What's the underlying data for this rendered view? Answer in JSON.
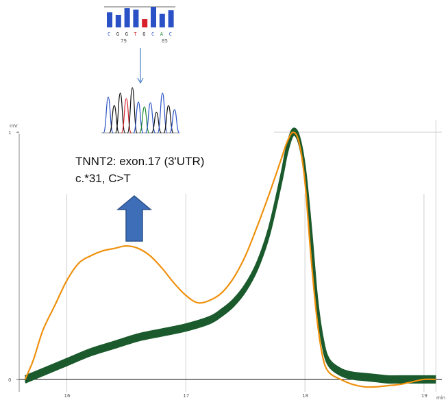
{
  "chart_data": {
    "type": "line",
    "xlabel": "min",
    "ylabel": "mV",
    "xlim": [
      15.6,
      19.15
    ],
    "ylim": [
      -0.05,
      1.05
    ],
    "x_ticks": [
      "16",
      "17",
      "18",
      "19"
    ],
    "y_ticks": [
      "0",
      "1"
    ],
    "grid": true,
    "colors": {
      "mutant": "#f0900c",
      "wildtype": "#1a5a2c",
      "arrow": "#3f6eb8",
      "grid": "#cfcfcf",
      "axis": "#222222"
    },
    "series": [
      {
        "key": "mutant",
        "x": [
          15.65,
          15.72,
          15.8,
          15.9,
          16.0,
          16.1,
          16.2,
          16.3,
          16.4,
          16.5,
          16.6,
          16.7,
          16.8,
          16.9,
          17.0,
          17.1,
          17.2,
          17.3,
          17.4,
          17.5,
          17.6,
          17.7,
          17.8,
          17.85,
          17.9,
          17.95,
          18.0,
          18.05,
          18.1,
          18.15,
          18.2,
          18.3,
          18.4,
          18.5,
          18.6,
          18.7,
          18.8,
          18.9,
          19.0,
          19.1
        ],
        "y": [
          0.0,
          0.08,
          0.2,
          0.3,
          0.4,
          0.47,
          0.5,
          0.52,
          0.53,
          0.54,
          0.53,
          0.5,
          0.45,
          0.39,
          0.34,
          0.31,
          0.32,
          0.35,
          0.41,
          0.5,
          0.62,
          0.75,
          0.89,
          0.96,
          1.0,
          0.96,
          0.8,
          0.5,
          0.25,
          0.09,
          0.03,
          0.0,
          -0.02,
          -0.03,
          -0.03,
          -0.025,
          -0.02,
          -0.01,
          0.0,
          0.0
        ]
      },
      {
        "key": "wildtype",
        "x": [
          15.65,
          15.8,
          16.0,
          16.2,
          16.4,
          16.6,
          16.8,
          17.0,
          17.2,
          17.3,
          17.4,
          17.5,
          17.6,
          17.7,
          17.8,
          17.85,
          17.9,
          17.95,
          18.0,
          18.05,
          18.1,
          18.15,
          18.2,
          18.3,
          18.4,
          18.5,
          18.6,
          18.7,
          18.8,
          18.9,
          19.0,
          19.1
        ],
        "y": [
          0.0,
          0.03,
          0.07,
          0.11,
          0.14,
          0.17,
          0.19,
          0.21,
          0.24,
          0.27,
          0.31,
          0.37,
          0.46,
          0.6,
          0.81,
          0.93,
          1.0,
          0.97,
          0.84,
          0.6,
          0.32,
          0.15,
          0.07,
          0.03,
          0.015,
          0.01,
          0.005,
          0.0,
          0.0,
          0.0,
          0.0,
          0.0
        ]
      }
    ],
    "annotation": {
      "line1": "TNNT2: exon.17 (3'UTR)",
      "line2": "c.*31, C>T"
    },
    "inset": {
      "reference_sequence": [
        "C",
        "G",
        "G",
        "T",
        "G",
        "C",
        "A",
        "C"
      ],
      "highlight_index": 4,
      "position_labels": [
        "79",
        "85"
      ],
      "base_colors": {
        "C": "#2a52c6",
        "G": "#111111",
        "T": "#d8222a",
        "A": "#1c8a2e"
      }
    }
  }
}
